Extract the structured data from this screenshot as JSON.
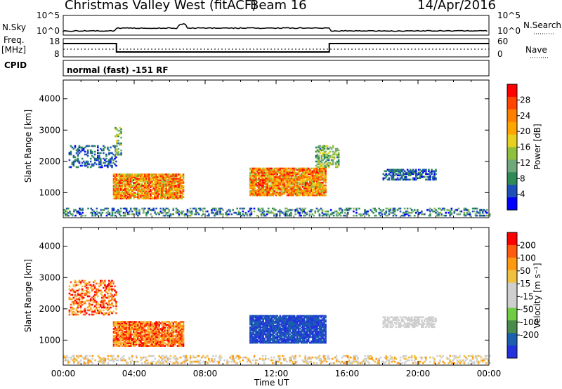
{
  "header": {
    "title": "Christmas Valley West (fitACF)",
    "beam": "Beam 16",
    "date": "14/Apr/2016"
  },
  "noise_panel": {
    "left_label": "N.Sky",
    "right_label": "N.Search",
    "left_ticks": [
      "10^5",
      "10^0"
    ],
    "right_ticks": [
      "10^5",
      "10^0"
    ]
  },
  "freq_panel": {
    "left_label_1": "Freq.",
    "left_label_2": "[MHz]",
    "right_label": "Nave",
    "left_ticks": [
      "18",
      "8"
    ],
    "right_ticks": [
      "60",
      "0"
    ]
  },
  "cpid_panel": {
    "label": "CPID",
    "text": "normal (fast) -151 RF"
  },
  "colors": {
    "power_scale": [
      "#0000ff",
      "#1f4fb8",
      "#2e8b57",
      "#6fa87a",
      "#8fbf3f",
      "#e8d020",
      "#ffa500",
      "#ff7f00",
      "#ff4500",
      "#ff0000"
    ],
    "velocity_scale": [
      "#2233dd",
      "#1c5fae",
      "#4a8a4a",
      "#6fcc44",
      "#cfcfcf",
      "#cfcfcf",
      "#f0c040",
      "#ff9a10",
      "#ff5a10",
      "#ff0000"
    ]
  },
  "chart_data": [
    {
      "type": "heatmap",
      "name": "power",
      "ylabel": "Slant Range [km]",
      "yticks": [
        1000,
        2000,
        3000,
        4000
      ],
      "ylim": [
        200,
        4600
      ],
      "xlim": [
        0,
        24
      ],
      "colorbar_label": "Power [dB]",
      "colorbar_ticks": [
        4,
        8,
        12,
        16,
        20,
        24,
        28
      ],
      "colorbar_range": [
        0,
        32
      ],
      "regions": [
        {
          "t0": 0.0,
          "t1": 24.0,
          "r0": 250,
          "r1": 480,
          "vlo": 2,
          "vhi": 14,
          "density": 0.35
        },
        {
          "t0": 0.3,
          "t1": 3.0,
          "r0": 1800,
          "r1": 2500,
          "vlo": 2,
          "vhi": 9,
          "density": 0.3
        },
        {
          "t0": 2.8,
          "t1": 6.8,
          "r0": 800,
          "r1": 1600,
          "vlo": 14,
          "vhi": 31,
          "density": 0.85
        },
        {
          "t0": 10.5,
          "t1": 14.8,
          "r0": 900,
          "r1": 1800,
          "vlo": 14,
          "vhi": 31,
          "density": 0.9
        },
        {
          "t0": 14.2,
          "t1": 15.5,
          "r0": 1800,
          "r1": 2500,
          "vlo": 6,
          "vhi": 18,
          "density": 0.5
        },
        {
          "t0": 18.0,
          "t1": 21.0,
          "r0": 1400,
          "r1": 1750,
          "vlo": 2,
          "vhi": 9,
          "density": 0.6
        },
        {
          "t0": 2.9,
          "t1": 3.3,
          "r0": 2200,
          "r1": 3100,
          "vlo": 6,
          "vhi": 18,
          "density": 0.4
        }
      ]
    },
    {
      "type": "heatmap",
      "name": "velocity",
      "ylabel": "Slant Range [km]",
      "yticks": [
        1000,
        2000,
        3000,
        4000
      ],
      "ylim": [
        200,
        4600
      ],
      "xlim": [
        0,
        24
      ],
      "xlabel": "Time UT",
      "xticks": [
        "00:00",
        "04:00",
        "08:00",
        "12:00",
        "16:00",
        "20:00",
        "00:00"
      ],
      "colorbar_label": "Velocity [m s⁻¹]",
      "colorbar_ticks": [
        200,
        100,
        50,
        15,
        -15,
        -50,
        -100,
        -200
      ],
      "regions": [
        {
          "t0": 0.0,
          "t1": 24.0,
          "r0": 250,
          "r1": 480,
          "vlo": 4,
          "vhi": 7,
          "density": 0.35
        },
        {
          "t0": 0.3,
          "t1": 3.0,
          "r0": 1800,
          "r1": 2900,
          "vlo": 6,
          "vhi": 9,
          "density": 0.4
        },
        {
          "t0": 2.8,
          "t1": 6.8,
          "r0": 800,
          "r1": 1600,
          "vlo": 6,
          "vhi": 9,
          "density": 0.85
        },
        {
          "t0": 10.5,
          "t1": 14.8,
          "r0": 900,
          "r1": 1800,
          "vlo": 0,
          "vhi": 1,
          "density": 0.9
        },
        {
          "t0": 18.0,
          "t1": 21.0,
          "r0": 1400,
          "r1": 1750,
          "vlo": 4,
          "vhi": 5,
          "density": 0.6
        }
      ]
    }
  ]
}
